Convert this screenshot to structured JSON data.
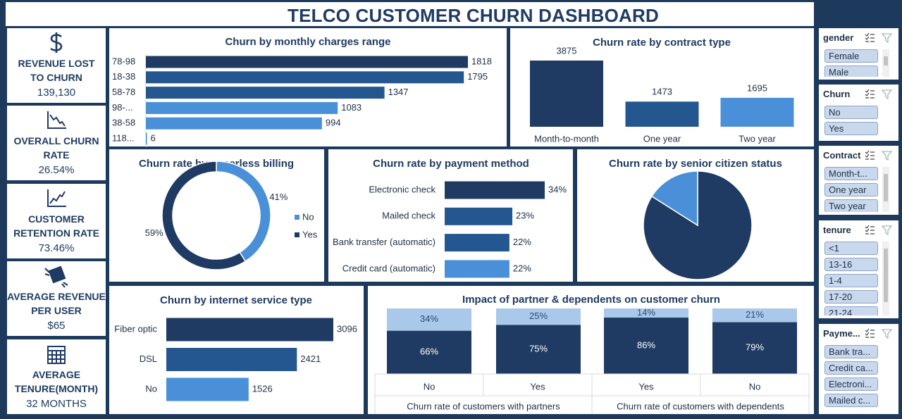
{
  "title": "TELCO CUSTOMER CHURN DASHBOARD",
  "kpis": [
    {
      "label": "REVENUE LOST TO CHURN",
      "value": "139,130"
    },
    {
      "label": "OVERALL CHURN RATE",
      "value": "26.54%"
    },
    {
      "label": "CUSTOMER RETENTION RATE",
      "value": "73.46%"
    },
    {
      "label": "AVERAGE REVENUE PER USER",
      "value": "$65"
    },
    {
      "label": "AVERAGE TENURE(MONTH)",
      "value": "32 MONTHS"
    }
  ],
  "chart_data": [
    {
      "type": "hbar",
      "title": "Churn by monthly charges range",
      "categories": [
        "78-98",
        "18-38",
        "58-78",
        "98-...",
        "38-58",
        "118..."
      ],
      "values": [
        1818,
        1795,
        1347,
        1083,
        994,
        6
      ],
      "colors": [
        "#1f3b63",
        "#24578f",
        "#24578f",
        "#4a90d9",
        "#4a90d9",
        "#4a90d9"
      ]
    },
    {
      "type": "bar",
      "title": "Churn rate by contract type",
      "categories": [
        "Month-to-month",
        "One year",
        "Two year"
      ],
      "values": [
        3875,
        1473,
        1695
      ],
      "colors": [
        "#1f3b63",
        "#24578f",
        "#4a90d9"
      ]
    },
    {
      "type": "donut",
      "title": "Churn rate by paperless billing",
      "categories": [
        "No",
        "Yes"
      ],
      "values": [
        41,
        59
      ],
      "value_labels": [
        "41%",
        "59%"
      ],
      "colors": [
        "#4a90d9",
        "#1f3b63"
      ],
      "legend": "right"
    },
    {
      "type": "hbar",
      "title": "Churn rate by payment method",
      "categories": [
        "Electronic check",
        "Mailed check",
        "Bank transfer (automatic)",
        "Credit card (automatic)"
      ],
      "values": [
        34,
        23,
        22,
        22
      ],
      "value_labels": [
        "34%",
        "23%",
        "22%",
        "22%"
      ],
      "colors": [
        "#1f3b63",
        "#24578f",
        "#24578f",
        "#4a90d9"
      ]
    },
    {
      "type": "pie",
      "title": "Churn rate by senior citizen status",
      "values": [
        84,
        16
      ],
      "colors": [
        "#1f3b63",
        "#4a90d9"
      ]
    },
    {
      "type": "hbar",
      "title": "Churn by internet service type",
      "categories": [
        "Fiber optic",
        "DSL",
        "No"
      ],
      "values": [
        3096,
        2421,
        1526
      ],
      "colors": [
        "#1f3b63",
        "#24578f",
        "#4a90d9"
      ]
    },
    {
      "type": "stacked",
      "title": "Impact of partner & dependents on customer churn",
      "categories": [
        "No",
        "Yes",
        "Yes",
        "No"
      ],
      "group_labels": [
        "Churn rate of customers with partners",
        "Churn rate of customers with dependents"
      ],
      "series": [
        {
          "color": "#1f3b63",
          "values": [
            66,
            75,
            86,
            79
          ],
          "value_labels": [
            "66%",
            "75%",
            "86%",
            "79%"
          ]
        },
        {
          "color": "#a9c8ea",
          "values": [
            34,
            25,
            14,
            21
          ],
          "value_labels": [
            "34%",
            "25%",
            "14%",
            "21%"
          ]
        }
      ]
    }
  ],
  "slicers": [
    {
      "title": "gender",
      "items": [
        "Female",
        "Male"
      ]
    },
    {
      "title": "Churn",
      "items": [
        "No",
        "Yes"
      ]
    },
    {
      "title": "Contract",
      "items": [
        "Month-t...",
        "One year",
        "Two year"
      ]
    },
    {
      "title": "tenure",
      "items": [
        "<1",
        "13-16",
        "1-4",
        "17-20",
        "21-24"
      ]
    },
    {
      "title": "Payme...",
      "items": [
        "Bank tra...",
        "Credit ca...",
        "Electroni...",
        "Mailed c..."
      ]
    }
  ]
}
